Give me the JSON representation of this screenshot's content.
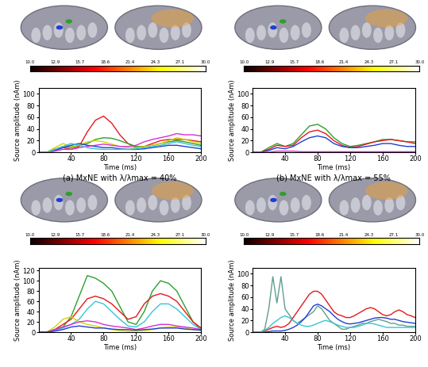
{
  "chart_data": [
    {
      "type": "line",
      "title": "(a) MxNE with λ/λmax = 40%",
      "xlabel": "Time (ms)",
      "ylabel": "Source amplitude (nAm)",
      "x": [
        0,
        10,
        20,
        30,
        40,
        50,
        60,
        70,
        80,
        90,
        100,
        110,
        120,
        130,
        140,
        150,
        160,
        170,
        180,
        190,
        200
      ],
      "xlim": [
        0,
        200
      ],
      "xticks": [
        40,
        80,
        120,
        160,
        200
      ],
      "ylim": [
        0,
        110
      ],
      "yticks": [
        0,
        20,
        40,
        60,
        80,
        100
      ],
      "colorbar_range": [
        10.0,
        30.0
      ],
      "colorbar_ticks": [
        10.0,
        12.9,
        15.7,
        18.6,
        21.4,
        24.3,
        27.1,
        30.0
      ],
      "series": [
        {
          "color": "#e41a1c",
          "values": [
            0,
            0,
            5,
            8,
            5,
            10,
            35,
            55,
            62,
            50,
            30,
            15,
            8,
            10,
            15,
            20,
            22,
            22,
            22,
            20,
            18
          ]
        },
        {
          "color": "#2ca02c",
          "values": [
            0,
            0,
            5,
            10,
            8,
            12,
            15,
            22,
            25,
            24,
            20,
            15,
            10,
            10,
            12,
            15,
            18,
            20,
            18,
            15,
            12
          ]
        },
        {
          "color": "#d4d400",
          "values": [
            0,
            0,
            8,
            15,
            10,
            12,
            18,
            20,
            18,
            14,
            10,
            8,
            8,
            10,
            12,
            15,
            20,
            25,
            22,
            18,
            15
          ]
        },
        {
          "color": "#1f3fd4",
          "values": [
            0,
            0,
            3,
            8,
            12,
            15,
            12,
            10,
            8,
            8,
            6,
            5,
            5,
            6,
            8,
            10,
            12,
            12,
            10,
            8,
            6
          ]
        },
        {
          "color": "#d62fd6",
          "values": [
            0,
            0,
            2,
            5,
            5,
            8,
            10,
            12,
            14,
            12,
            10,
            10,
            12,
            18,
            22,
            25,
            28,
            32,
            30,
            30,
            28
          ]
        },
        {
          "color": "#36c6d6",
          "values": [
            0,
            0,
            5,
            10,
            15,
            12,
            8,
            6,
            5,
            5,
            5,
            5,
            6,
            8,
            10,
            12,
            15,
            18,
            15,
            12,
            10
          ]
        }
      ]
    },
    {
      "type": "line",
      "title": "(b) MxNE with λ/λmax = 55%",
      "xlabel": "Time (ms)",
      "ylabel": "Source amplitude (nAm)",
      "x": [
        0,
        10,
        20,
        30,
        40,
        50,
        60,
        70,
        80,
        90,
        100,
        110,
        120,
        130,
        140,
        150,
        160,
        170,
        180,
        190,
        200
      ],
      "xlim": [
        0,
        200
      ],
      "xticks": [
        40,
        80,
        120,
        160,
        200
      ],
      "ylim": [
        0,
        110
      ],
      "yticks": [
        0,
        20,
        40,
        60,
        80,
        100
      ],
      "colorbar_range": [
        10.0,
        30.0
      ],
      "colorbar_ticks": [
        10.0,
        12.9,
        15.7,
        18.6,
        21.4,
        24.3,
        27.1,
        30.0
      ],
      "series": [
        {
          "color": "#2ca02c",
          "values": [
            0,
            0,
            8,
            15,
            10,
            15,
            30,
            45,
            48,
            40,
            25,
            15,
            10,
            12,
            15,
            18,
            22,
            22,
            20,
            18,
            18
          ]
        },
        {
          "color": "#e41a1c",
          "values": [
            0,
            0,
            5,
            12,
            10,
            12,
            25,
            35,
            38,
            32,
            20,
            12,
            8,
            10,
            14,
            18,
            20,
            22,
            20,
            18,
            15
          ]
        },
        {
          "color": "#1f3fd4",
          "values": [
            0,
            0,
            3,
            8,
            6,
            10,
            18,
            25,
            28,
            25,
            15,
            10,
            8,
            8,
            10,
            12,
            15,
            15,
            12,
            10,
            10
          ]
        },
        {
          "color": "#d62fd6",
          "values": [
            0,
            0,
            0,
            2,
            2,
            2,
            1,
            1,
            1,
            1,
            1,
            1,
            1,
            1,
            1,
            1,
            1,
            1,
            1,
            1,
            1
          ]
        }
      ]
    },
    {
      "type": "line",
      "xlabel": "Time (ms)",
      "ylabel": "Source amplitude (nAm)",
      "x": [
        0,
        10,
        20,
        30,
        40,
        50,
        60,
        70,
        80,
        90,
        100,
        110,
        120,
        130,
        140,
        150,
        160,
        170,
        180,
        190,
        200
      ],
      "xlim": [
        0,
        200
      ],
      "xticks": [
        40,
        80,
        120,
        160,
        200
      ],
      "ylim": [
        0,
        125
      ],
      "yticks": [
        0,
        20,
        40,
        60,
        80,
        100,
        120
      ],
      "colorbar_range": [
        10.0,
        30.0
      ],
      "colorbar_ticks": [
        10.0,
        12.9,
        15.7,
        18.6,
        21.4,
        24.3,
        27.1,
        30.0
      ],
      "series": [
        {
          "color": "#2ca02c",
          "values": [
            0,
            0,
            5,
            10,
            30,
            70,
            110,
            105,
            95,
            80,
            50,
            20,
            15,
            40,
            80,
            100,
            95,
            80,
            50,
            20,
            5
          ]
        },
        {
          "color": "#e41a1c",
          "values": [
            0,
            0,
            5,
            15,
            25,
            45,
            65,
            70,
            65,
            55,
            40,
            25,
            30,
            55,
            70,
            75,
            70,
            60,
            40,
            20,
            8
          ]
        },
        {
          "color": "#36c6d6",
          "values": [
            0,
            0,
            3,
            8,
            15,
            25,
            45,
            60,
            55,
            40,
            25,
            12,
            10,
            20,
            40,
            55,
            55,
            45,
            30,
            15,
            5
          ]
        },
        {
          "color": "#d4d400",
          "values": [
            0,
            0,
            10,
            25,
            30,
            20,
            15,
            12,
            8,
            5,
            3,
            2,
            2,
            3,
            5,
            8,
            10,
            10,
            8,
            5,
            3
          ]
        },
        {
          "color": "#d62fd6",
          "values": [
            0,
            0,
            5,
            10,
            15,
            20,
            22,
            20,
            15,
            12,
            10,
            8,
            5,
            8,
            12,
            15,
            15,
            12,
            10,
            8,
            5
          ]
        },
        {
          "color": "#1f3fd4",
          "values": [
            0,
            0,
            2,
            5,
            10,
            12,
            10,
            8,
            8,
            6,
            5,
            5,
            4,
            5,
            6,
            8,
            8,
            8,
            6,
            5,
            4
          ]
        }
      ]
    },
    {
      "type": "line",
      "xlabel": "Time (ms)",
      "ylabel": "Source amplitude (nAm)",
      "x": [
        0,
        5,
        10,
        15,
        20,
        25,
        30,
        35,
        40,
        45,
        50,
        55,
        60,
        65,
        70,
        75,
        80,
        85,
        90,
        95,
        100,
        105,
        110,
        115,
        120,
        125,
        130,
        135,
        140,
        145,
        150,
        155,
        160,
        165,
        170,
        175,
        180,
        185,
        190,
        195,
        200
      ],
      "xlim": [
        0,
        200
      ],
      "xticks": [
        40,
        80,
        120,
        160,
        200
      ],
      "ylim": [
        0,
        110
      ],
      "yticks": [
        0,
        20,
        40,
        60,
        80,
        100
      ],
      "colorbar_range": [
        10.0,
        30.0
      ],
      "colorbar_ticks": [
        10.0,
        12.9,
        15.7,
        18.6,
        21.4,
        24.3,
        27.1,
        30.0
      ],
      "series": [
        {
          "color": "#5f9e8f",
          "values": [
            0,
            0,
            0,
            5,
            40,
            95,
            50,
            95,
            40,
            30,
            20,
            15,
            20,
            25,
            30,
            35,
            45,
            40,
            30,
            20,
            15,
            10,
            5,
            5,
            8,
            10,
            12,
            15,
            15,
            18,
            20,
            22,
            20,
            18,
            15,
            15,
            12,
            12,
            10,
            10,
            10
          ]
        },
        {
          "color": "#e41a1c",
          "values": [
            0,
            0,
            0,
            2,
            5,
            8,
            10,
            8,
            10,
            15,
            25,
            35,
            45,
            55,
            65,
            70,
            70,
            65,
            55,
            45,
            35,
            30,
            28,
            25,
            25,
            28,
            32,
            36,
            40,
            42,
            40,
            35,
            30,
            28,
            30,
            35,
            38,
            35,
            30,
            28,
            25
          ]
        },
        {
          "color": "#1f3fd4",
          "values": [
            0,
            0,
            0,
            0,
            1,
            2,
            2,
            2,
            3,
            5,
            8,
            12,
            18,
            25,
            35,
            45,
            48,
            45,
            40,
            35,
            28,
            22,
            18,
            15,
            14,
            15,
            16,
            18,
            20,
            22,
            24,
            25,
            25,
            24,
            22,
            22,
            20,
            18,
            17,
            16,
            15
          ]
        },
        {
          "color": "#36c6d6",
          "values": [
            0,
            0,
            0,
            3,
            8,
            15,
            20,
            25,
            28,
            25,
            20,
            15,
            12,
            10,
            10,
            12,
            15,
            18,
            20,
            18,
            15,
            12,
            10,
            8,
            8,
            8,
            10,
            12,
            15,
            15,
            14,
            12,
            10,
            8,
            8,
            8,
            8,
            8,
            8,
            8,
            8
          ]
        }
      ]
    }
  ]
}
